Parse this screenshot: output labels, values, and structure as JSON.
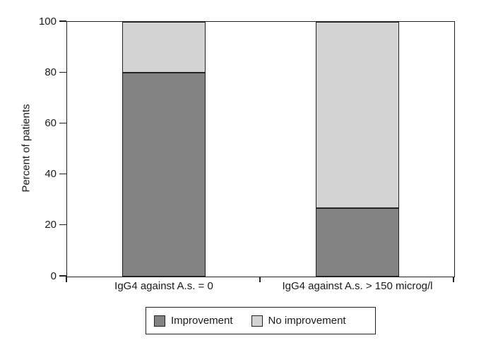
{
  "chart_data": {
    "type": "bar",
    "stacked": true,
    "categories": [
      "IgG4 against A.s. = 0",
      "IgG4 against A.s. > 150 microg/l"
    ],
    "series": [
      {
        "name": "Improvement",
        "color": "#838383",
        "values": [
          80,
          27
        ]
      },
      {
        "name": "No improvement",
        "color": "#d3d3d3",
        "values": [
          20,
          73
        ]
      }
    ],
    "title": "",
    "xlabel": "",
    "ylabel": "Percent of patients",
    "ylim": [
      0,
      100
    ],
    "yticks": [
      0,
      20,
      40,
      60,
      80,
      100
    ],
    "grid": false,
    "legend_position": "bottom",
    "line_color": "#222222",
    "background_color": "#ffffff"
  }
}
